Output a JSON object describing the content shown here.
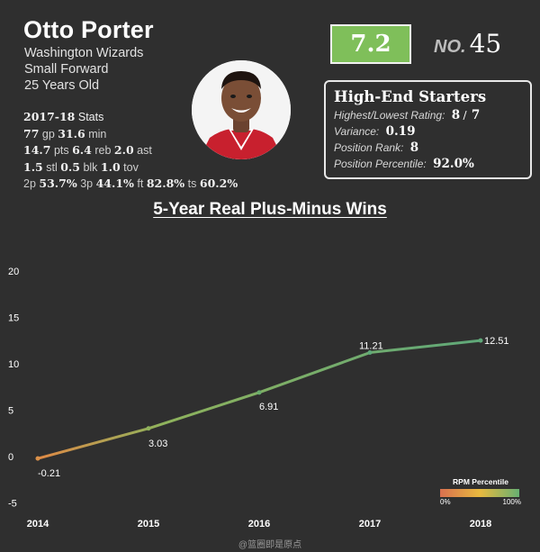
{
  "player": {
    "name": "Otto Porter",
    "team": "Washington Wizards",
    "position": "Small Forward",
    "age": "25 Years Old"
  },
  "stats": {
    "season": "2017-18",
    "season_label": "Stats",
    "gp": "77",
    "gp_label": "gp",
    "min": "31.6",
    "min_label": "min",
    "pts": "14.7",
    "pts_label": "pts",
    "reb": "6.4",
    "reb_label": "reb",
    "ast": "2.0",
    "ast_label": "ast",
    "stl": "1.5",
    "stl_label": "stl",
    "blk": "0.5",
    "blk_label": "blk",
    "tov": "1.0",
    "tov_label": "tov",
    "two_p": "53.7%",
    "two_p_label": "2p",
    "three_p": "44.1%",
    "three_p_label": "3p",
    "ft": "82.8%",
    "ft_label": "ft",
    "ts": "60.2%",
    "ts_label": "ts"
  },
  "rating": {
    "value": "7.2",
    "no_label": "NO.",
    "rank": "45",
    "color": "#7fbf5a"
  },
  "tier": {
    "title": "High-End Starters",
    "hl_label": "Highest/Lowest Rating:",
    "highest": "8",
    "slash": "/",
    "lowest": "7",
    "variance_label": "Variance:",
    "variance": "0.19",
    "pos_rank_label": "Position Rank:",
    "pos_rank": "8",
    "pos_pct_label": "Position Percentile:",
    "pos_pct": "92.0%"
  },
  "chart_data": {
    "type": "line",
    "title": "5-Year Real Plus-Minus Wins",
    "x": [
      "2014",
      "2015",
      "2016",
      "2017",
      "2018"
    ],
    "values": [
      -0.21,
      3.03,
      6.91,
      11.21,
      12.51
    ],
    "data_labels": [
      "-0.21",
      "3.03",
      "6.91",
      "11.21",
      "12.51"
    ],
    "yticks": [
      "20",
      "15",
      "10",
      "5",
      "0",
      "-5"
    ],
    "ytick_values": [
      20,
      15,
      10,
      5,
      0,
      -5
    ],
    "ylim": [
      -5,
      20
    ],
    "grid": false,
    "legend": {
      "title": "RPM Percentile",
      "min_label": "0%",
      "max_label": "100%",
      "colors": [
        "#d9704f",
        "#e8b93f",
        "#67b072"
      ],
      "placement": "bottom-right"
    }
  },
  "watermark": "@篮圈即是原点"
}
